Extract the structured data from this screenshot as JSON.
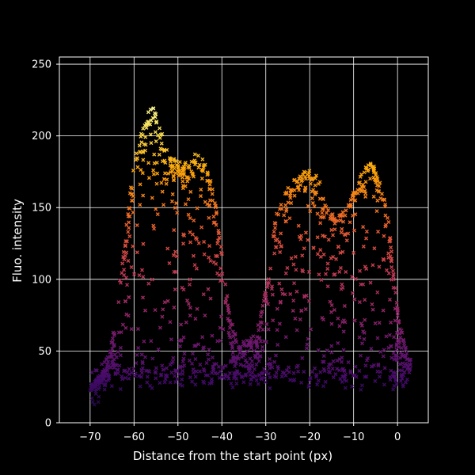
{
  "chart_data": {
    "type": "scatter",
    "title": "",
    "xlabel": "Distance from the start point (px)",
    "ylabel": "Fluo. intensity",
    "xlim": [
      -77,
      7
    ],
    "ylim": [
      0,
      255
    ],
    "xticks": [
      -70,
      -60,
      -50,
      -40,
      -30,
      -20,
      -10,
      0
    ],
    "yticks": [
      0,
      50,
      100,
      150,
      200,
      250
    ],
    "grid": true,
    "marker": "x",
    "colormap": "inferno",
    "background": "#000000",
    "axis_color": "#ffffff",
    "profile_points": [
      [
        -70,
        24
      ],
      [
        -68,
        30
      ],
      [
        -66,
        42
      ],
      [
        -64,
        80
      ],
      [
        -62,
        130
      ],
      [
        -60,
        185
      ],
      [
        -58,
        205
      ],
      [
        -56,
        222
      ],
      [
        -54,
        205
      ],
      [
        -52,
        185
      ],
      [
        -50,
        182
      ],
      [
        -48,
        180
      ],
      [
        -46,
        188
      ],
      [
        -44,
        182
      ],
      [
        -42,
        165
      ],
      [
        -40,
        120
      ],
      [
        -38,
        70
      ],
      [
        -36,
        55
      ],
      [
        -34,
        57
      ],
      [
        -32,
        62
      ],
      [
        -30,
        95
      ],
      [
        -28,
        140
      ],
      [
        -26,
        158
      ],
      [
        -24,
        168
      ],
      [
        -22,
        172
      ],
      [
        -20,
        178
      ],
      [
        -18,
        170
      ],
      [
        -16,
        148
      ],
      [
        -14,
        142
      ],
      [
        -12,
        148
      ],
      [
        -10,
        160
      ],
      [
        -8,
        175
      ],
      [
        -6,
        182
      ],
      [
        -4,
        170
      ],
      [
        -2,
        140
      ],
      [
        0,
        80
      ],
      [
        2,
        50
      ],
      [
        3,
        45
      ]
    ]
  }
}
